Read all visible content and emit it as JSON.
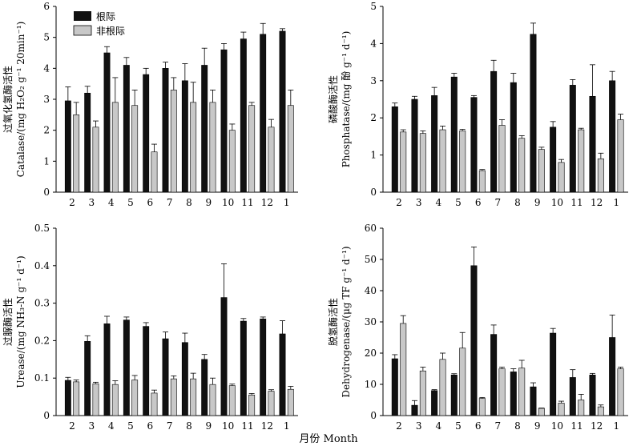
{
  "x_title": "月份 Month",
  "legend": {
    "series1": "根际",
    "series2": "非根际"
  },
  "colors": {
    "rhizosphere": "#111111",
    "non_rhizosphere": "#c8c8c8"
  },
  "chart_data": [
    {
      "type": "bar",
      "ylabel_cn": "过氧化氢酶活性",
      "ylabel_en": "Catalase/(mg H₂O₂ g⁻¹ 20min⁻¹)",
      "ylim": [
        0,
        6
      ],
      "yticks": [
        0,
        1,
        2,
        3,
        4,
        5,
        6
      ],
      "categories": [
        "2",
        "3",
        "4",
        "5",
        "6",
        "7",
        "8",
        "9",
        "10",
        "11",
        "12",
        "1"
      ],
      "series": [
        {
          "name": "根际",
          "values": [
            2.95,
            3.2,
            4.5,
            4.1,
            3.8,
            4.0,
            3.6,
            4.1,
            4.6,
            4.95,
            5.1,
            5.2
          ],
          "errors": [
            0.45,
            0.22,
            0.2,
            0.25,
            0.2,
            0.2,
            0.55,
            0.55,
            0.2,
            0.22,
            0.35,
            0.08
          ]
        },
        {
          "name": "非根际",
          "values": [
            2.5,
            2.1,
            2.9,
            2.8,
            1.3,
            3.3,
            2.9,
            2.9,
            2.0,
            2.8,
            2.1,
            2.8
          ],
          "errors": [
            0.4,
            0.2,
            0.8,
            0.5,
            0.25,
            0.4,
            0.65,
            0.4,
            0.2,
            0.1,
            0.25,
            0.5
          ]
        }
      ]
    },
    {
      "type": "bar",
      "ylabel_cn": "磷酸酶活性",
      "ylabel_en": "Phosphatase/(mg 酚 g⁻¹ d⁻¹)",
      "ylim": [
        0,
        5
      ],
      "yticks": [
        0,
        1,
        2,
        3,
        4,
        5
      ],
      "categories": [
        "2",
        "3",
        "4",
        "5",
        "6",
        "7",
        "8",
        "9",
        "10",
        "11",
        "12",
        "1"
      ],
      "series": [
        {
          "name": "根际",
          "values": [
            2.3,
            2.5,
            2.6,
            3.1,
            2.55,
            3.25,
            2.95,
            4.25,
            1.75,
            2.88,
            2.58,
            3.0
          ],
          "errors": [
            0.1,
            0.08,
            0.22,
            0.1,
            0.05,
            0.3,
            0.25,
            0.3,
            0.15,
            0.15,
            0.85,
            0.25
          ]
        },
        {
          "name": "非根际",
          "values": [
            1.62,
            1.58,
            1.68,
            1.65,
            0.58,
            1.8,
            1.45,
            1.15,
            0.8,
            1.68,
            0.9,
            1.95
          ],
          "errors": [
            0.06,
            0.07,
            0.1,
            0.04,
            0.03,
            0.15,
            0.07,
            0.06,
            0.08,
            0.04,
            0.15,
            0.15
          ]
        }
      ]
    },
    {
      "type": "bar",
      "ylabel_cn": "过脲酶活性",
      "ylabel_en": "Urease/(mg NH₃-N g⁻¹ d⁻¹)",
      "ylim": [
        0,
        0.5
      ],
      "yticks": [
        0,
        0.1,
        0.2,
        0.3,
        0.4,
        0.5
      ],
      "ytick_labels": [
        "0",
        "0.1",
        "0.2",
        "0.3",
        "0.4",
        "0.5"
      ],
      "categories": [
        "2",
        "3",
        "4",
        "5",
        "6",
        "7",
        "8",
        "9",
        "10",
        "11",
        "12",
        "1"
      ],
      "series": [
        {
          "name": "根际",
          "values": [
            0.094,
            0.198,
            0.245,
            0.255,
            0.238,
            0.205,
            0.195,
            0.15,
            0.315,
            0.252,
            0.258,
            0.218
          ],
          "errors": [
            0.008,
            0.015,
            0.02,
            0.008,
            0.01,
            0.018,
            0.025,
            0.013,
            0.09,
            0.007,
            0.005,
            0.035
          ]
        },
        {
          "name": "非根际",
          "values": [
            0.09,
            0.085,
            0.083,
            0.095,
            0.06,
            0.098,
            0.098,
            0.083,
            0.08,
            0.055,
            0.065,
            0.07
          ],
          "errors": [
            0.005,
            0.004,
            0.01,
            0.012,
            0.008,
            0.008,
            0.015,
            0.017,
            0.004,
            0.004,
            0.004,
            0.008
          ]
        }
      ]
    },
    {
      "type": "bar",
      "ylabel_cn": "脱氢酶活性",
      "ylabel_en": "Dehydrogenase/(μg TF g⁻¹ d⁻¹)",
      "ylim": [
        0,
        60
      ],
      "yticks": [
        0,
        10,
        20,
        30,
        40,
        50,
        60
      ],
      "categories": [
        "2",
        "3",
        "4",
        "5",
        "6",
        "7",
        "8",
        "9",
        "10",
        "11",
        "12",
        "1"
      ],
      "series": [
        {
          "name": "根际",
          "values": [
            18.2,
            3.3,
            8.0,
            13.0,
            48.0,
            26.0,
            14.0,
            9.2,
            26.4,
            12.2,
            13.0,
            25.0
          ],
          "errors": [
            1.3,
            1.5,
            0.3,
            0.4,
            6.0,
            3.0,
            1.0,
            1.3,
            1.5,
            2.5,
            0.5,
            7.2
          ]
        },
        {
          "name": "非根际",
          "values": [
            29.5,
            14.3,
            18.0,
            21.6,
            5.5,
            15.0,
            15.2,
            2.3,
            4.0,
            5.0,
            2.8,
            15.0
          ],
          "errors": [
            2.5,
            1.2,
            2.0,
            5.0,
            0.3,
            0.5,
            2.5,
            0.1,
            0.6,
            1.8,
            0.6,
            0.5
          ]
        }
      ]
    }
  ]
}
